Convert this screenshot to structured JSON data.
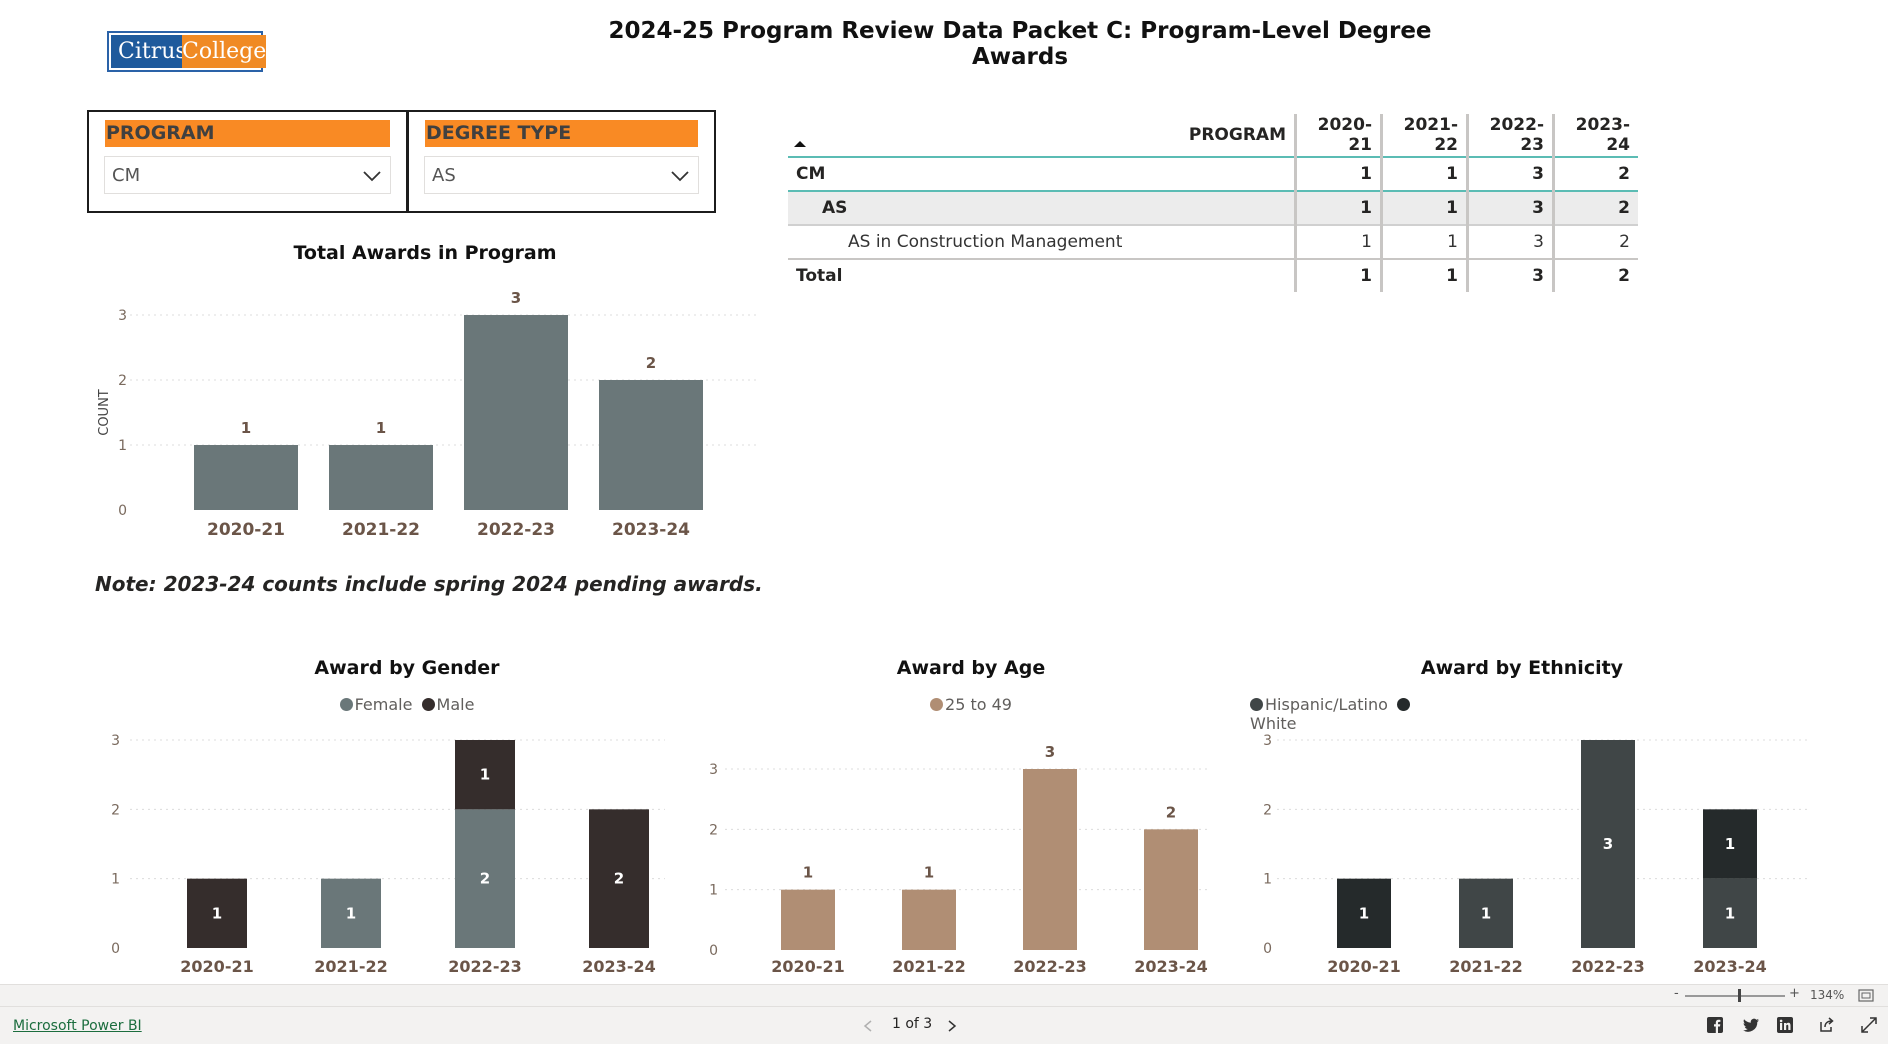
{
  "header": {
    "logo_left": "Citrus",
    "logo_right": "College",
    "title": "2024-25 Program Review Data Packet C: Program-Level Degree Awards"
  },
  "slicers": {
    "program": {
      "label": "PROGRAM",
      "value": "CM"
    },
    "degree_type": {
      "label": "DEGREE TYPE",
      "value": "AS"
    }
  },
  "matrix": {
    "header": [
      "PROGRAM",
      "2020-21",
      "2021-22",
      "2022-23",
      "2023-24"
    ],
    "rows": [
      {
        "label": "CM",
        "values": [
          "1",
          "1",
          "3",
          "2"
        ]
      },
      {
        "label": "AS",
        "values": [
          "1",
          "1",
          "3",
          "2"
        ]
      },
      {
        "label": "AS in Construction Management",
        "values": [
          "1",
          "1",
          "3",
          "2"
        ]
      },
      {
        "label": "Total",
        "values": [
          "1",
          "1",
          "3",
          "2"
        ]
      }
    ]
  },
  "note": "Note: 2023-24 counts include spring 2024 pending awards.",
  "colors": {
    "bar_gray": "#6a7779",
    "female": "#6a7779",
    "male": "#352d2c",
    "age": "#b08e74",
    "hispanic": "#404647",
    "white": "#252a2b",
    "accent_orange": "#f98a24",
    "label_brown": "#6b5548"
  },
  "chart_data": [
    {
      "id": "total",
      "type": "bar",
      "title": "Total Awards in Program",
      "ylabel": "COUNT",
      "categories": [
        "2020-21",
        "2021-22",
        "2022-23",
        "2023-24"
      ],
      "values": [
        1,
        1,
        3,
        2
      ],
      "ylim": [
        0,
        3
      ],
      "yticks": [
        0,
        1,
        2,
        3
      ],
      "grid": true
    },
    {
      "id": "gender",
      "type": "bar",
      "stacked": true,
      "title": "Award by Gender",
      "categories": [
        "2020-21",
        "2021-22",
        "2022-23",
        "2023-24"
      ],
      "series": [
        {
          "name": "Female",
          "values": [
            0,
            1,
            2,
            0
          ]
        },
        {
          "name": "Male",
          "values": [
            1,
            0,
            1,
            2
          ]
        }
      ],
      "ylim": [
        0,
        3
      ],
      "yticks": [
        0,
        1,
        2,
        3
      ],
      "legend": "top-center",
      "grid": true
    },
    {
      "id": "age",
      "type": "bar",
      "title": "Award by Age",
      "categories": [
        "2020-21",
        "2021-22",
        "2022-23",
        "2023-24"
      ],
      "series": [
        {
          "name": "25 to 49",
          "values": [
            1,
            1,
            3,
            2
          ]
        }
      ],
      "ylim": [
        0,
        3
      ],
      "yticks": [
        0,
        1,
        2,
        3
      ],
      "legend": "top-center",
      "grid": true
    },
    {
      "id": "ethnicity",
      "type": "bar",
      "stacked": true,
      "title": "Award by Ethnicity",
      "categories": [
        "2020-21",
        "2021-22",
        "2022-23",
        "2023-24"
      ],
      "series": [
        {
          "name": "Hispanic/Latino",
          "values": [
            0,
            1,
            3,
            1
          ]
        },
        {
          "name": "White",
          "values": [
            1,
            0,
            0,
            1
          ]
        }
      ],
      "ylim": [
        0,
        3
      ],
      "yticks": [
        0,
        1,
        2,
        3
      ],
      "legend": "top-center",
      "grid": true
    }
  ],
  "footer": {
    "powerbi_link": "Microsoft Power BI",
    "page_indicator": "1 of 3",
    "zoom": "134%",
    "zoom_minus": "-",
    "zoom_plus": "+"
  }
}
